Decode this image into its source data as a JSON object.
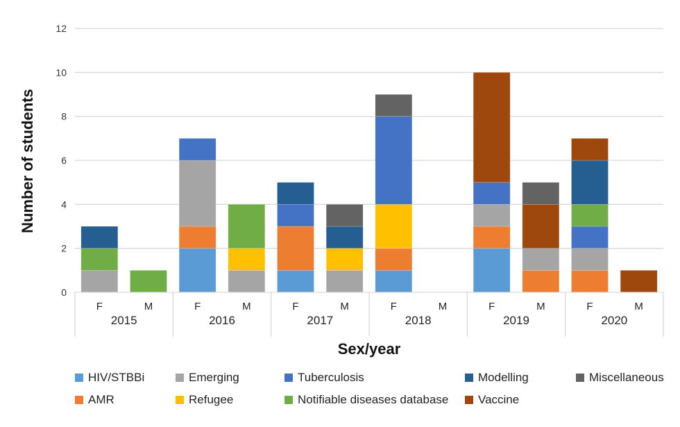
{
  "chart_data": {
    "type": "bar",
    "stacked": true,
    "title": "",
    "xlabel": "Sex/year",
    "ylabel": "Number of students",
    "ylim": [
      0,
      12
    ],
    "yticks": [
      0,
      2,
      4,
      6,
      8,
      10,
      12
    ],
    "grid": true,
    "legend_position": "bottom",
    "groups": [
      "2015",
      "2016",
      "2017",
      "2018",
      "2019",
      "2020"
    ],
    "subcategories": [
      "F",
      "M"
    ],
    "categories": [
      "2015 F",
      "2015 M",
      "2016 F",
      "2016 M",
      "2017 F",
      "2017 M",
      "2018 F",
      "2018 M",
      "2019 F",
      "2019 M",
      "2020 F",
      "2020 M"
    ],
    "series": [
      {
        "name": "HIV/STBBi",
        "color": "#5B9BD5",
        "values": [
          0,
          0,
          2,
          0,
          1,
          0,
          1,
          0,
          2,
          0,
          0,
          0
        ]
      },
      {
        "name": "AMR",
        "color": "#ED7D31",
        "values": [
          0,
          0,
          1,
          0,
          2,
          0,
          1,
          0,
          1,
          1,
          1,
          0
        ]
      },
      {
        "name": "Emerging",
        "color": "#A5A5A5",
        "values": [
          1,
          0,
          3,
          1,
          0,
          1,
          0,
          0,
          1,
          1,
          1,
          0
        ]
      },
      {
        "name": "Refugee",
        "color": "#FFC000",
        "values": [
          0,
          0,
          0,
          1,
          0,
          1,
          2,
          0,
          0,
          0,
          0,
          0
        ]
      },
      {
        "name": "Tuberculosis",
        "color": "#4472C4",
        "values": [
          0,
          0,
          1,
          0,
          1,
          0,
          4,
          0,
          1,
          0,
          1,
          0
        ]
      },
      {
        "name": "Notifiable diseases database",
        "color": "#70AD47",
        "values": [
          1,
          1,
          0,
          2,
          0,
          0,
          0,
          0,
          0,
          0,
          1,
          0
        ]
      },
      {
        "name": "Modelling",
        "color": "#255E91",
        "values": [
          1,
          0,
          0,
          0,
          1,
          1,
          0,
          0,
          0,
          0,
          2,
          0
        ]
      },
      {
        "name": "Vaccine",
        "color": "#9E480E",
        "values": [
          0,
          0,
          0,
          0,
          0,
          0,
          0,
          0,
          5,
          2,
          1,
          1
        ]
      },
      {
        "name": "Miscellaneous",
        "color": "#636363",
        "values": [
          0,
          0,
          0,
          0,
          0,
          1,
          1,
          0,
          0,
          1,
          0,
          0
        ]
      }
    ],
    "legend_order": [
      "HIV/STBBi",
      "Emerging",
      "Tuberculosis",
      "Modelling",
      "Miscellaneous",
      "AMR",
      "Refugee",
      "Notifiable diseases database",
      "Vaccine"
    ]
  }
}
